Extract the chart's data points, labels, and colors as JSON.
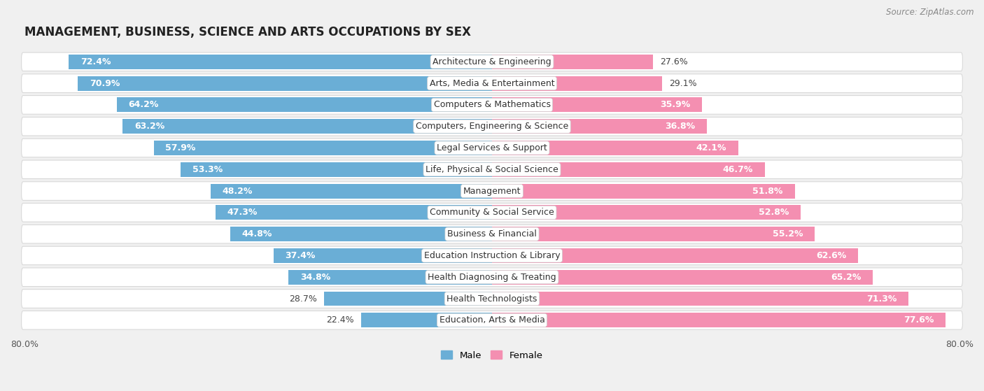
{
  "title": "MANAGEMENT, BUSINESS, SCIENCE AND ARTS OCCUPATIONS BY SEX",
  "source": "Source: ZipAtlas.com",
  "categories": [
    "Architecture & Engineering",
    "Arts, Media & Entertainment",
    "Computers & Mathematics",
    "Computers, Engineering & Science",
    "Legal Services & Support",
    "Life, Physical & Social Science",
    "Management",
    "Community & Social Service",
    "Business & Financial",
    "Education Instruction & Library",
    "Health Diagnosing & Treating",
    "Health Technologists",
    "Education, Arts & Media"
  ],
  "male": [
    72.4,
    70.9,
    64.2,
    63.2,
    57.9,
    53.3,
    48.2,
    47.3,
    44.8,
    37.4,
    34.8,
    28.7,
    22.4
  ],
  "female": [
    27.6,
    29.1,
    35.9,
    36.8,
    42.1,
    46.7,
    51.8,
    52.8,
    55.2,
    62.6,
    65.2,
    71.3,
    77.6
  ],
  "male_color": "#6aaed6",
  "female_color": "#f48fb1",
  "background_color": "#f0f0f0",
  "bar_bg_color": "#ffffff",
  "bar_border_color": "#d0d0d0",
  "xlim": 80.0,
  "bar_height": 0.68,
  "title_fontsize": 12,
  "label_fontsize": 9,
  "tick_fontsize": 9,
  "source_fontsize": 8.5,
  "male_label_white_threshold": 30,
  "female_label_white_threshold": 30
}
